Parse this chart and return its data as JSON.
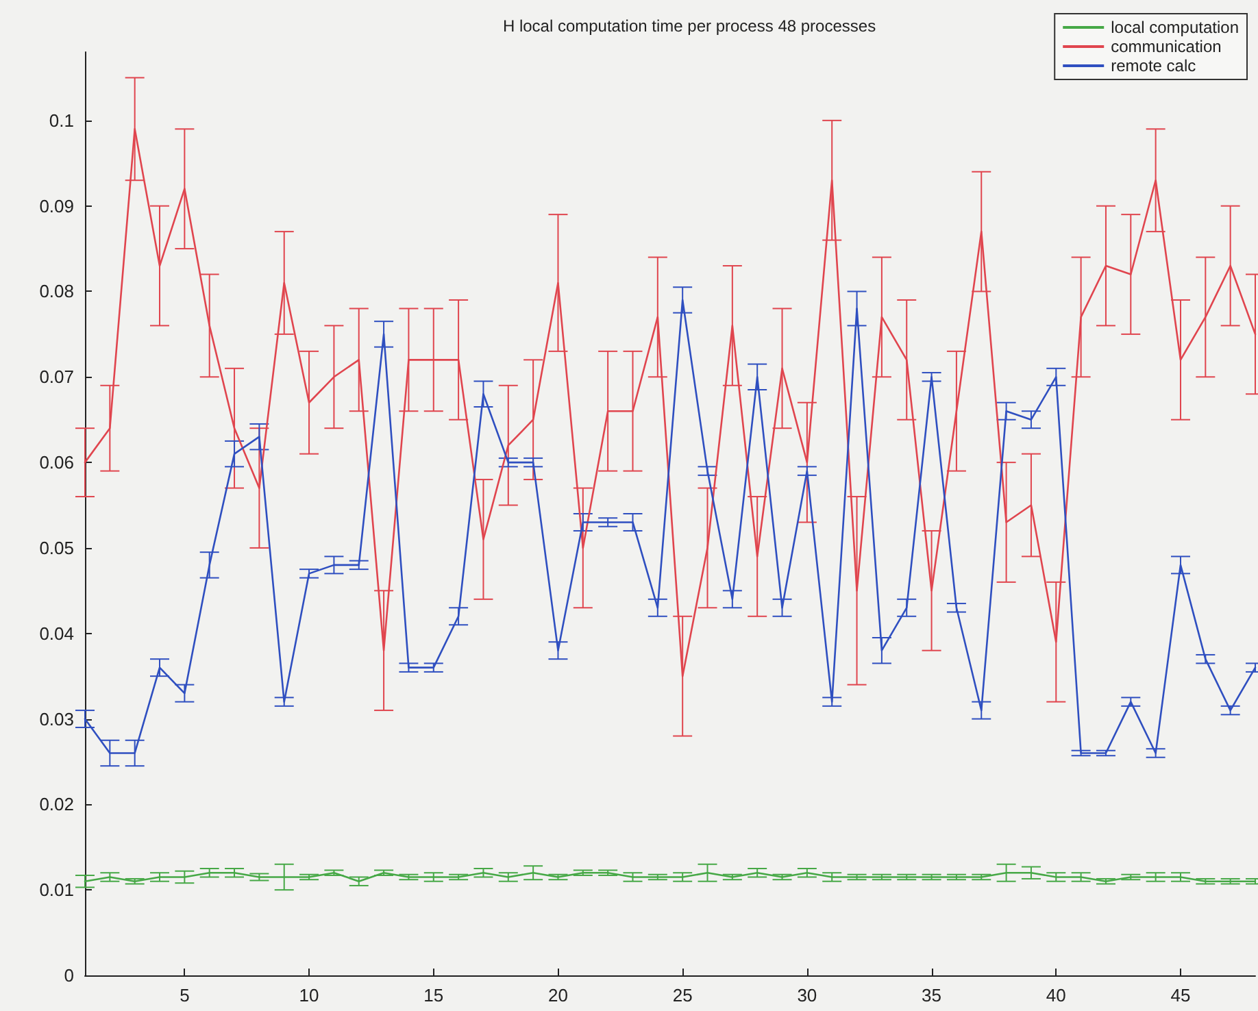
{
  "chart_data": {
    "type": "line",
    "title": "H local computation time per process 48 processes",
    "x": [
      1,
      2,
      3,
      4,
      5,
      6,
      7,
      8,
      9,
      10,
      11,
      12,
      13,
      14,
      15,
      16,
      17,
      18,
      19,
      20,
      21,
      22,
      23,
      24,
      25,
      26,
      27,
      28,
      29,
      30,
      31,
      32,
      33,
      34,
      35,
      36,
      37,
      38,
      39,
      40,
      41,
      42,
      43,
      44,
      45,
      46,
      47,
      48
    ],
    "xlim": [
      1,
      48
    ],
    "xticks": [
      5,
      10,
      15,
      20,
      25,
      30,
      35,
      40,
      45
    ],
    "ylim": [
      0,
      0.108
    ],
    "yticks": [
      0,
      0.01,
      0.02,
      0.03,
      0.04,
      0.05,
      0.06,
      0.07,
      0.08,
      0.09,
      0.1
    ],
    "grid": false,
    "legend": "top right",
    "marker": "none",
    "line_style": "solid",
    "series": [
      {
        "name": "local computation",
        "color": "#46a846",
        "values": [
          0.011,
          0.0115,
          0.011,
          0.0115,
          0.0115,
          0.012,
          0.012,
          0.0115,
          0.0115,
          0.0115,
          0.012,
          0.011,
          0.012,
          0.0115,
          0.0115,
          0.0115,
          0.012,
          0.0115,
          0.012,
          0.0115,
          0.012,
          0.012,
          0.0115,
          0.0115,
          0.0115,
          0.012,
          0.0115,
          0.012,
          0.0115,
          0.012,
          0.0115,
          0.0115,
          0.0115,
          0.0115,
          0.0115,
          0.0115,
          0.0115,
          0.012,
          0.012,
          0.0115,
          0.0115,
          0.011,
          0.0115,
          0.0115,
          0.0115,
          0.011,
          0.011,
          0.011
        ],
        "errors": [
          0.0007,
          0.0005,
          0.0003,
          0.0005,
          0.0007,
          0.0005,
          0.0005,
          0.0004,
          0.0015,
          0.0003,
          0.0003,
          0.0005,
          0.0003,
          0.0003,
          0.0005,
          0.0003,
          0.0005,
          0.0005,
          0.0008,
          0.0003,
          0.0003,
          0.0003,
          0.0005,
          0.0003,
          0.0005,
          0.001,
          0.0003,
          0.0005,
          0.0003,
          0.0005,
          0.0005,
          0.0003,
          0.0003,
          0.0003,
          0.0003,
          0.0003,
          0.0003,
          0.001,
          0.0007,
          0.0005,
          0.0005,
          0.0003,
          0.0003,
          0.0005,
          0.0005,
          0.0003,
          0.0003,
          0.0003
        ]
      },
      {
        "name": "communication",
        "color": "#e0454e",
        "values": [
          0.06,
          0.064,
          0.099,
          0.083,
          0.092,
          0.076,
          0.064,
          0.057,
          0.081,
          0.067,
          0.07,
          0.072,
          0.038,
          0.072,
          0.072,
          0.072,
          0.051,
          0.062,
          0.065,
          0.081,
          0.05,
          0.066,
          0.066,
          0.077,
          0.035,
          0.05,
          0.076,
          0.049,
          0.071,
          0.06,
          0.093,
          0.045,
          0.077,
          0.072,
          0.045,
          0.066,
          0.087,
          0.053,
          0.055,
          0.039,
          0.077,
          0.083,
          0.082,
          0.093,
          0.072,
          0.077,
          0.083,
          0.075
        ],
        "errors": [
          0.004,
          0.005,
          0.006,
          0.007,
          0.007,
          0.006,
          0.007,
          0.007,
          0.006,
          0.006,
          0.006,
          0.006,
          0.007,
          0.006,
          0.006,
          0.007,
          0.007,
          0.007,
          0.007,
          0.008,
          0.007,
          0.007,
          0.007,
          0.007,
          0.007,
          0.007,
          0.007,
          0.007,
          0.007,
          0.007,
          0.007,
          0.011,
          0.007,
          0.007,
          0.007,
          0.007,
          0.007,
          0.007,
          0.006,
          0.007,
          0.007,
          0.007,
          0.007,
          0.006,
          0.007,
          0.007,
          0.007,
          0.007
        ]
      },
      {
        "name": "remote calc",
        "color": "#2f4fc0",
        "values": [
          0.03,
          0.026,
          0.026,
          0.036,
          0.033,
          0.048,
          0.061,
          0.063,
          0.032,
          0.047,
          0.048,
          0.048,
          0.075,
          0.036,
          0.036,
          0.042,
          0.068,
          0.06,
          0.06,
          0.038,
          0.053,
          0.053,
          0.053,
          0.043,
          0.079,
          0.059,
          0.044,
          0.07,
          0.043,
          0.059,
          0.032,
          0.078,
          0.038,
          0.043,
          0.07,
          0.043,
          0.031,
          0.066,
          0.065,
          0.07,
          0.026,
          0.026,
          0.032,
          0.026,
          0.048,
          0.037,
          0.031,
          0.036
        ],
        "errors": [
          0.001,
          0.0015,
          0.0015,
          0.001,
          0.001,
          0.0015,
          0.0015,
          0.0015,
          0.0005,
          0.0005,
          0.001,
          0.0005,
          0.0015,
          0.0005,
          0.0005,
          0.001,
          0.0015,
          0.0005,
          0.0005,
          0.001,
          0.001,
          0.0005,
          0.001,
          0.001,
          0.0015,
          0.0005,
          0.001,
          0.0015,
          0.001,
          0.0005,
          0.0005,
          0.002,
          0.0015,
          0.001,
          0.0005,
          0.0005,
          0.001,
          0.001,
          0.001,
          0.001,
          0.0003,
          0.0003,
          0.0005,
          0.0005,
          0.001,
          0.0005,
          0.0005,
          0.0005
        ]
      }
    ]
  }
}
